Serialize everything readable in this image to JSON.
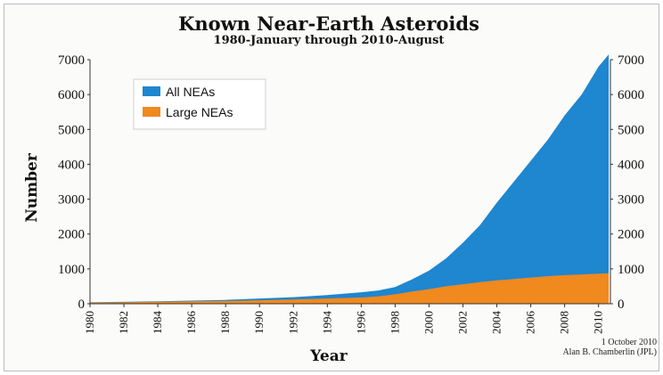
{
  "chart_data": {
    "type": "area",
    "title": "Known Near-Earth Asteroids",
    "subtitle": "1980-January through 2010-August",
    "xlabel": "Year",
    "ylabel": "Number",
    "xlim": [
      1980,
      2010.7
    ],
    "ylim": [
      0,
      7000
    ],
    "yticks": [
      0,
      1000,
      2000,
      3000,
      4000,
      5000,
      6000,
      7000
    ],
    "xticks": [
      1980,
      1982,
      1984,
      1986,
      1988,
      1990,
      1992,
      1994,
      1996,
      1998,
      2000,
      2002,
      2004,
      2006,
      2008,
      2010
    ],
    "legend_position": "top-left",
    "series": [
      {
        "name": "All NEAs",
        "color": "#1f86d0",
        "x": [
          1980,
          1984,
          1988,
          1990,
          1992,
          1994,
          1996,
          1997,
          1998,
          1999,
          2000,
          2001,
          2002,
          2003,
          2004,
          2005,
          2006,
          2007,
          2008,
          2009,
          2010,
          2010.6
        ],
        "values": [
          40,
          70,
          110,
          150,
          190,
          250,
          330,
          380,
          480,
          700,
          950,
          1300,
          1750,
          2250,
          2900,
          3500,
          4100,
          4700,
          5400,
          6000,
          6800,
          7150
        ]
      },
      {
        "name": "Large NEAs",
        "color": "#f0891e",
        "x": [
          1980,
          1984,
          1988,
          1990,
          1992,
          1994,
          1996,
          1997,
          1998,
          1999,
          2000,
          2001,
          2002,
          2003,
          2004,
          2005,
          2006,
          2007,
          2008,
          2009,
          2010,
          2010.6
        ],
        "values": [
          30,
          55,
          80,
          100,
          120,
          150,
          180,
          210,
          270,
          350,
          420,
          500,
          560,
          620,
          670,
          710,
          750,
          790,
          820,
          840,
          860,
          870
        ]
      }
    ],
    "annotations": [
      "1 October 2010",
      "Alan B. Chamberlin (JPL)"
    ]
  }
}
